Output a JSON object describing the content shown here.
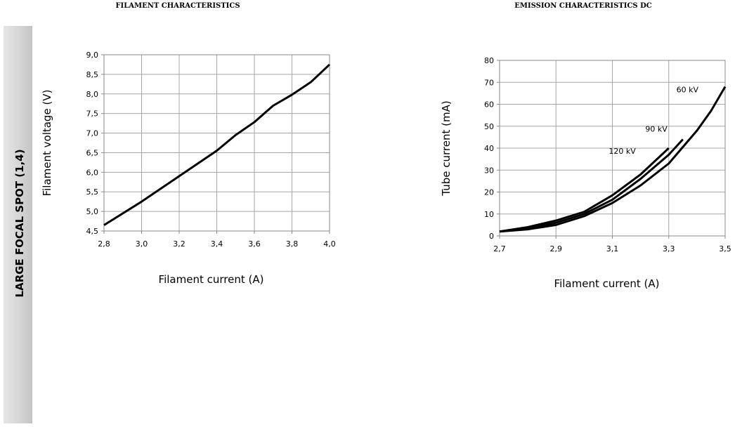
{
  "side_label": "LARGE FOCAL SPOT (1,4)",
  "chart_data": [
    {
      "type": "line",
      "title": "FILAMENT CHARACTERISTICS",
      "x_label": "Filament current (A)",
      "y_label": "Filament voltage (V)",
      "xlim": [
        2.8,
        4.0
      ],
      "ylim": [
        4.5,
        9.0
      ],
      "xticks": [
        {
          "value": 2.8,
          "label": "2,8"
        },
        {
          "value": 3.0,
          "label": "3,0"
        },
        {
          "value": 3.2,
          "label": "3,2"
        },
        {
          "value": 3.4,
          "label": "3,4"
        },
        {
          "value": 3.6,
          "label": "3,6"
        },
        {
          "value": 3.8,
          "label": "3,8"
        },
        {
          "value": 4.0,
          "label": "4,0"
        }
      ],
      "yticks": [
        {
          "value": 4.5,
          "label": "4,5"
        },
        {
          "value": 5.0,
          "label": "5,0"
        },
        {
          "value": 5.5,
          "label": "5,5"
        },
        {
          "value": 6.0,
          "label": "6,0"
        },
        {
          "value": 6.5,
          "label": "6,5"
        },
        {
          "value": 7.0,
          "label": "7,0"
        },
        {
          "value": 7.5,
          "label": "7,5"
        },
        {
          "value": 8.0,
          "label": "8,0"
        },
        {
          "value": 8.5,
          "label": "8,5"
        },
        {
          "value": 9.0,
          "label": "9,0"
        }
      ],
      "grid": true,
      "series": [
        {
          "color": "#000000",
          "x": [
            2.8,
            3.0,
            3.2,
            3.4,
            3.5,
            3.6,
            3.7,
            3.8,
            3.9,
            4.0
          ],
          "values": [
            4.65,
            5.25,
            5.9,
            6.55,
            6.95,
            7.28,
            7.7,
            7.98,
            8.3,
            8.75
          ]
        }
      ]
    },
    {
      "type": "line",
      "title": "EMISSION CHARACTERISTICS DC",
      "x_label": "Filament current (A)",
      "y_label": "Tube current (mA)",
      "xlim": [
        2.7,
        3.5
      ],
      "ylim": [
        0,
        80
      ],
      "xticks": [
        {
          "value": 2.7,
          "label": "2,7"
        },
        {
          "value": 2.9,
          "label": "2,9"
        },
        {
          "value": 3.1,
          "label": "3,1"
        },
        {
          "value": 3.3,
          "label": "3,3"
        },
        {
          "value": 3.5,
          "label": "3,5"
        }
      ],
      "yticks": [
        0,
        10,
        20,
        30,
        40,
        50,
        60,
        70,
        80
      ],
      "grid": true,
      "series": [
        {
          "name": "60 kV",
          "color": "#000000",
          "x": [
            2.7,
            2.8,
            2.9,
            3.0,
            3.1,
            3.2,
            3.3,
            3.4,
            3.45,
            3.5
          ],
          "values": [
            2,
            3,
            5,
            9,
            15,
            23,
            33,
            48,
            57,
            68
          ]
        },
        {
          "name": "90 kV",
          "color": "#000000",
          "x": [
            2.7,
            2.8,
            2.9,
            3.0,
            3.1,
            3.2,
            3.3,
            3.35
          ],
          "values": [
            2,
            3.5,
            6,
            10,
            16.5,
            26,
            37,
            44
          ]
        },
        {
          "name": "120 kV",
          "color": "#000000",
          "x": [
            2.7,
            2.8,
            2.9,
            3.0,
            3.1,
            3.2,
            3.3
          ],
          "values": [
            2,
            4,
            7,
            11,
            18.5,
            28,
            40
          ]
        }
      ]
    }
  ]
}
